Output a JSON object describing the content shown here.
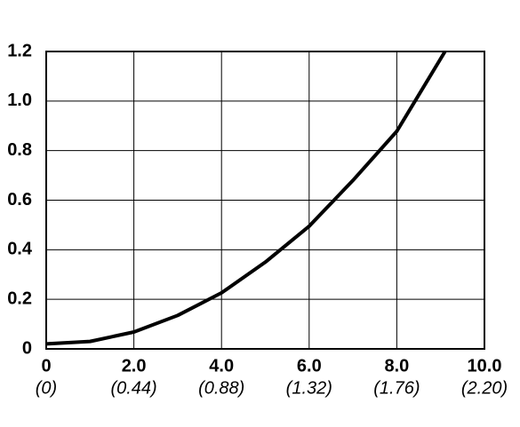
{
  "chart_data": {
    "type": "line",
    "x": [
      0,
      1,
      2,
      3,
      4,
      5,
      6,
      7,
      8,
      9.1
    ],
    "series": [
      {
        "color": "#000000",
        "values": [
          0.02,
          0.03,
          0.068,
          0.135,
          0.226,
          0.35,
          0.495,
          0.68,
          0.878,
          1.2
        ]
      }
    ],
    "xlim": [
      0,
      10
    ],
    "ylim": [
      0,
      1.2
    ],
    "xticks": [
      0,
      {
        "value": 2,
        "label": "2.0"
      },
      {
        "value": 4,
        "label": "4.0"
      },
      {
        "value": 6,
        "label": "6.0"
      },
      {
        "value": 8,
        "label": "8.0"
      },
      {
        "value": 10,
        "label": "10.0"
      }
    ],
    "x2ticks": [
      {
        "value": 0,
        "label": "(0)"
      },
      {
        "value": 0.44,
        "label": "(0.44)"
      },
      {
        "value": 0.88,
        "label": "(0.88)"
      },
      {
        "value": 1.32,
        "label": "(1.32)"
      },
      {
        "value": 1.76,
        "label": "(1.76)"
      },
      {
        "value": 2.2,
        "label": "(2.20)"
      }
    ],
    "yticks": [
      0,
      0.2,
      0.4,
      0.6,
      0.8,
      {
        "value": 1,
        "label": "1.0"
      },
      1.2
    ],
    "grid": true
  }
}
